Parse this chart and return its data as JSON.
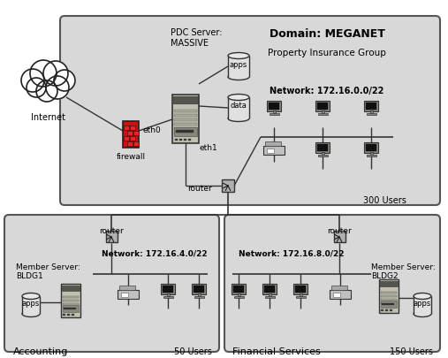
{
  "bg_color": "#ffffff",
  "box_fill": "#d3d3d3",
  "box_edge": "#555555",
  "domain_label": "Domain: MEGANET",
  "domain_sub": "Property Insurance Group",
  "pdc_label": "PDC Server:\nMASSIVE",
  "net_main": "Network: 172.16.0.0/22",
  "users_main": "300 Users",
  "net_left": "Network: 172.16.4.0/22",
  "users_left": "50 Users",
  "net_right": "Network: 172.16.8.0/22",
  "users_right": "150 Users",
  "left_label": "Accounting",
  "right_label": "Financial Services",
  "member_left": "Member Server:\nBLDG1",
  "member_right": "Member Server:\nBLDG2",
  "internet_label": "Internet",
  "firewall_label": "firewall",
  "router_label": "router",
  "eth0_label": "eth0",
  "eth1_label": "eth1",
  "apps_label": "apps",
  "data_label": "data",
  "firewall_color": "#cc0000",
  "server_body": "#c8c8c0",
  "server_dark": "#555555",
  "server_mid": "#888880",
  "router_fill": "#999999",
  "cloud_fill": "#ffffff"
}
